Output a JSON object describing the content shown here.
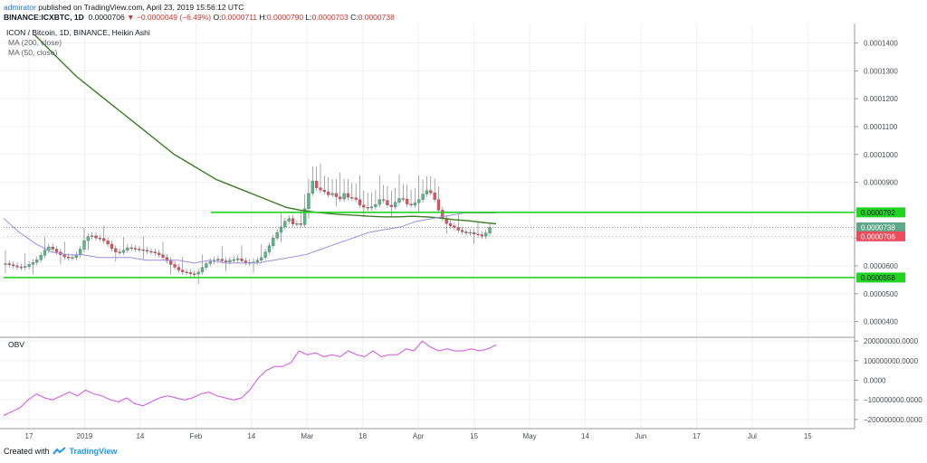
{
  "header": {
    "user": "admirator",
    "published_text": " published on TradingView.com, April 23, 2019 15:56:12 UTC",
    "symbol_line": "BINANCE:ICXBTC, 1D",
    "last": "0.0000706",
    "change": "−0.0000049 (−6.49%)",
    "ohlc": {
      "open_label": "O:",
      "open": "0.0000711",
      "high_label": "H:",
      "high": "0.0000790",
      "low_label": "L:",
      "low": "0.0000703",
      "close_label": "C:",
      "close": "0.0000738"
    }
  },
  "legend": {
    "title": "ICON / Bitcoin, 1D, BINANCE, Heikin Ashi",
    "ma200": "MA (200, close)",
    "ma50": "MA (50, close)",
    "obv": "OBV"
  },
  "footer": {
    "created_with": "Created with",
    "brand": "TradingView"
  },
  "colors": {
    "up": "#53b987",
    "down": "#eb4d5c",
    "ma200": "#3a7d23",
    "ma50": "#9c8ee0",
    "obv": "#d54ee8",
    "hline": "#22d422",
    "price_tag": "#eb4d5c",
    "close_tag": "#5ea88a",
    "grid": "#eef0f3"
  },
  "chart_data": [
    {
      "type": "candlestick",
      "title": "ICON / Bitcoin, 1D, BINANCE, Heikin Ashi",
      "x_ticks": [
        "17",
        "2019",
        "14",
        "Feb",
        "14",
        "Mar",
        "18",
        "Apr",
        "15",
        "May",
        "14",
        "Jun",
        "17",
        "Jul",
        "15"
      ],
      "y_ticks": [
        "0.0000400",
        "0.0000500",
        "0.0000600",
        "0.0000700",
        "0.0000800",
        "0.0000900",
        "0.0001000",
        "0.0001100",
        "0.0001200",
        "0.0001300",
        "0.0001400"
      ],
      "ylim": [
        3.5e-05,
        0.000147
      ],
      "price_tags": [
        {
          "label": "0.0000792",
          "value": 7.92e-05,
          "kind": "hline"
        },
        {
          "label": "0.0000738",
          "value": 7.38e-05,
          "kind": "close"
        },
        {
          "label": "0.0000706",
          "value": 7.06e-05,
          "kind": "last"
        },
        {
          "label": "0.0000558",
          "value": 5.58e-05,
          "kind": "hline"
        }
      ],
      "horizontal_lines": [
        {
          "value": 7.92e-05,
          "from_x_index": 59
        },
        {
          "value": 5.58e-05,
          "from_x_index": 0
        }
      ],
      "ohlc_closes": [
        6.08e-05,
        6.04e-05,
        6e-05,
        5.96e-05,
        5.94e-05,
        5.98e-05,
        6.05e-05,
        6.12e-05,
        6.22e-05,
        6.38e-05,
        6.56e-05,
        6.68e-05,
        6.6e-05,
        6.5e-05,
        6.4e-05,
        6.32e-05,
        6.28e-05,
        6.3e-05,
        6.4e-05,
        6.6e-05,
        6.9e-05,
        7.05e-05,
        7.08e-05,
        7e-05,
        6.98e-05,
        6.9e-05,
        6.78e-05,
        6.62e-05,
        6.5e-05,
        6.48e-05,
        6.56e-05,
        6.65e-05,
        6.63e-05,
        6.6e-05,
        6.58e-05,
        6.56e-05,
        6.52e-05,
        6.5e-05,
        6.46e-05,
        6.4e-05,
        6.3e-05,
        6.18e-05,
        6.05e-05,
        5.95e-05,
        5.85e-05,
        5.78e-05,
        5.76e-05,
        5.72e-05,
        5.7e-05,
        5.78e-05,
        5.94e-05,
        6.08e-05,
        6.16e-05,
        6.2e-05,
        6.24e-05,
        6.18e-05,
        6.14e-05,
        6.2e-05,
        6.22e-05,
        6.26e-05,
        6.18e-05,
        6.12e-05,
        6.1e-05,
        6.14e-05,
        6.2e-05,
        6.3e-05,
        6.5e-05,
        6.72e-05,
        7e-05,
        7.2e-05,
        7.4e-05,
        7.6e-05,
        7.7e-05,
        7.5e-05,
        7.52e-05,
        7.48e-05,
        8.05e-05,
        8.6e-05,
        9.05e-05,
        8.8e-05,
        8.72e-05,
        8.66e-05,
        8.55e-05,
        8.6e-05,
        8.48e-05,
        8.4e-05,
        8.6e-05,
        8.46e-05,
        8.44e-05,
        8.38e-05,
        8.18e-05,
        8.1e-05,
        8.08e-05,
        8.12e-05,
        8.2e-05,
        8.38e-05,
        8.35e-05,
        8.18e-05,
        8.12e-05,
        8.28e-05,
        8.42e-05,
        8.4e-05,
        8.22e-05,
        8.18e-05,
        8.26e-05,
        8.38e-05,
        8.58e-05,
        8.7e-05,
        8.62e-05,
        8.38e-05,
        8e-05,
        7.7e-05,
        7.52e-05,
        7.44e-05,
        7.38e-05,
        7.28e-05,
        7.22e-05,
        7.18e-05,
        7.2e-05,
        7.14e-05,
        7.12e-05,
        7.06e-05,
        7.18e-05,
        7.38e-05
      ],
      "series": [
        {
          "name": "MA (200, close)",
          "values": [
            0.000143,
            0.000138,
            0.000133,
            0.000128,
            0.000124,
            0.00012,
            0.000116,
            0.000112,
            0.000108,
            0.000104,
            0.0001,
            9.7e-05,
            9.4e-05,
            9.1e-05,
            8.9e-05,
            8.7e-05,
            8.5e-05,
            8.3e-05,
            8.1e-05,
            8e-05,
            7.93e-05,
            7.88e-05,
            7.84e-05,
            7.81e-05,
            7.78e-05,
            7.76e-05,
            7.76e-05,
            7.78e-05,
            7.76e-05,
            7.72e-05,
            7.66e-05,
            7.62e-05,
            7.56e-05,
            7.51e-05
          ]
        },
        {
          "name": "MA (50, close)",
          "values": [
            7.7e-05,
            7.2e-05,
            6.8e-05,
            6.5e-05,
            6.4e-05,
            6.4e-05,
            6.3e-05,
            6.3e-05,
            6.3e-05,
            6.2e-05,
            6.2e-05,
            6.2e-05,
            6.1e-05,
            6.2e-05,
            6.1e-05,
            6.1e-05,
            6.1e-05,
            6.2e-05,
            6.3e-05,
            6.4e-05,
            6.6e-05,
            6.8e-05,
            7e-05,
            7.2e-05,
            7.3e-05,
            7.4e-05,
            7.6e-05,
            7.7e-05,
            7.8e-05,
            7.9e-05,
            7.9e-05,
            7.9e-05
          ]
        },
        {
          "name": "OBV",
          "values": [
            -1800000000,
            -1600000000,
            -1400000000,
            -1000000000,
            -700000000,
            -900000000,
            -1000000000,
            -800000000,
            -600000000,
            -800000000,
            -500000000,
            -700000000,
            -800000000,
            -1000000000,
            -1100000000,
            -900000000,
            -1200000000,
            -1300000000,
            -1100000000,
            -900000000,
            -800000000,
            -900000000,
            -1000000000,
            -900000000,
            -700000000,
            -600000000,
            -800000000,
            -900000000,
            -1000000000,
            -900000000,
            -500000000,
            100000000,
            500000000,
            700000000,
            700000000,
            900000000,
            1500000000,
            1300000000,
            1400000000,
            1200000000,
            1300000000,
            1200000000,
            1500000000,
            1300000000,
            1200000000,
            1500000000,
            1200000000,
            1300000000,
            1300000000,
            1600000000,
            1500000000,
            2000000000,
            1700000000,
            1500000000,
            1600000000,
            1500000000,
            1500000000,
            1600000000,
            1500000000,
            1600000000,
            1800000000
          ]
        }
      ]
    },
    {
      "type": "line",
      "title": "OBV",
      "y_ticks": [
        "200000000.0000",
        "100000000.0000",
        "0.0000",
        "−100000000.0000",
        "−200000000.0000"
      ],
      "ylim": [
        -2100000000,
        2100000000
      ]
    }
  ]
}
